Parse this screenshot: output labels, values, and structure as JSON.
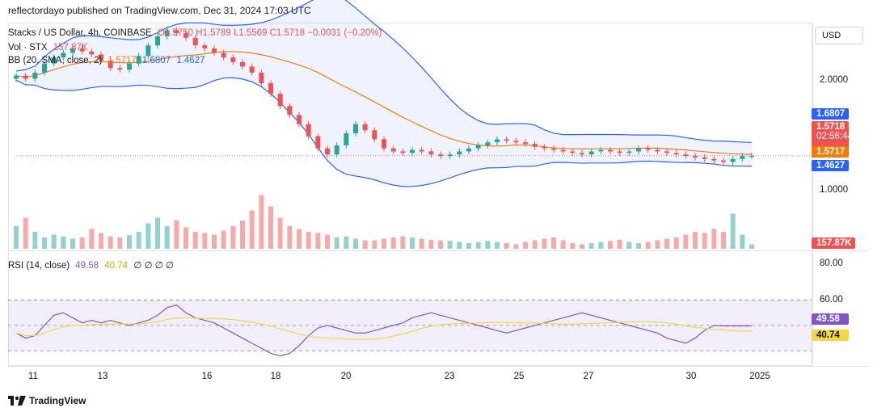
{
  "header": "reflectordayo published on TradingView.com, Dec 31, 2024 17:03 UTC",
  "legend": {
    "symbol": "Stacks / US Dollar, 4h, COINBASE",
    "ohlc": "O1.5750  H1.5789  L1.5569  C1.5718  −0.0031 (−0.20%)",
    "vol_label": "Vol · STX",
    "vol_value": "157.87K",
    "bb_label": "BB (20, SMA, close, 2)",
    "bb_mid": "1.5717",
    "bb_upper": "1.6807",
    "bb_lower": "1.4627",
    "rsi_label": "RSI (14, close)",
    "rsi_value": "49.58",
    "rsi_ma": "40.74",
    "rsi_extra": "∅ ∅ ∅ ∅"
  },
  "price_scale": {
    "currency": "USD",
    "labels": [
      "2.0000",
      "1.0000"
    ],
    "tags": {
      "upper": "1.6807",
      "last_price": "1.5718",
      "countdown": "02:56:44",
      "mid": "1.5717",
      "lower": "1.4627",
      "volume": "157.87K"
    }
  },
  "rsi_scale": {
    "labels": [
      "80.00",
      "60.00"
    ],
    "rsi_tag": "49.58",
    "ma_tag": "40.74"
  },
  "time_axis": [
    "11",
    "13",
    "16",
    "18",
    "20",
    "23",
    "25",
    "27",
    "30",
    "2025"
  ],
  "brand": "TradingView",
  "colors": {
    "up": "#26a69a",
    "down": "#ef5350",
    "bb_band": "#2962ff",
    "bb_mid": "#f57c00",
    "rsi": "#7e57c2",
    "rsi_ma": "#f5d642"
  },
  "chart_data": {
    "type": "candlestick",
    "symbol": "STX/USD",
    "interval": "4h",
    "close_series": [
      2.1,
      2.08,
      2.12,
      2.18,
      2.22,
      2.25,
      2.28,
      2.26,
      2.24,
      2.2,
      2.15,
      2.14,
      2.18,
      2.23,
      2.3,
      2.36,
      2.4,
      2.38,
      2.35,
      2.3,
      2.28,
      2.25,
      2.22,
      2.19,
      2.16,
      2.12,
      2.05,
      1.98,
      1.9,
      1.84,
      1.78,
      1.7,
      1.62,
      1.58,
      1.64,
      1.72,
      1.78,
      1.74,
      1.68,
      1.62,
      1.6,
      1.59,
      1.61,
      1.6,
      1.58,
      1.57,
      1.58,
      1.6,
      1.62,
      1.64,
      1.66,
      1.68,
      1.67,
      1.66,
      1.65,
      1.63,
      1.62,
      1.61,
      1.6,
      1.59,
      1.58,
      1.6,
      1.61,
      1.6,
      1.59,
      1.6,
      1.62,
      1.61,
      1.6,
      1.59,
      1.58,
      1.57,
      1.56,
      1.55,
      1.54,
      1.53,
      1.55,
      1.57,
      1.5718
    ],
    "volume": [
      0.4,
      0.55,
      0.3,
      0.2,
      0.25,
      0.22,
      0.18,
      0.2,
      0.35,
      0.28,
      0.22,
      0.2,
      0.24,
      0.3,
      0.45,
      0.55,
      0.4,
      0.5,
      0.38,
      0.3,
      0.28,
      0.25,
      0.32,
      0.4,
      0.5,
      0.68,
      0.95,
      0.75,
      0.55,
      0.4,
      0.35,
      0.3,
      0.28,
      0.25,
      0.2,
      0.22,
      0.18,
      0.15,
      0.15,
      0.18,
      0.2,
      0.22,
      0.2,
      0.18,
      0.16,
      0.15,
      0.14,
      0.12,
      0.1,
      0.12,
      0.14,
      0.12,
      0.1,
      0.08,
      0.12,
      0.15,
      0.18,
      0.2,
      0.15,
      0.1,
      0.08,
      0.1,
      0.12,
      0.14,
      0.16,
      0.12,
      0.1,
      0.12,
      0.15,
      0.18,
      0.2,
      0.25,
      0.3,
      0.28,
      0.35,
      0.3,
      0.62,
      0.25,
      0.08
    ],
    "rsi_series": [
      44,
      40,
      42,
      50,
      58,
      60,
      56,
      52,
      54,
      52,
      54,
      52,
      50,
      52,
      54,
      58,
      64,
      66,
      60,
      56,
      54,
      52,
      48,
      44,
      40,
      36,
      32,
      28,
      26,
      28,
      34,
      42,
      48,
      50,
      48,
      46,
      44,
      44,
      46,
      48,
      50,
      52,
      56,
      58,
      60,
      58,
      56,
      54,
      52,
      50,
      48,
      46,
      44,
      46,
      48,
      50,
      52,
      54,
      56,
      58,
      60,
      58,
      56,
      54,
      52,
      50,
      48,
      46,
      44,
      40,
      38,
      36,
      40,
      46,
      50,
      49.58,
      49.58,
      49.58,
      49.58
    ],
    "rsi_levels": [
      70,
      30
    ],
    "bb": {
      "upper": 1.6807,
      "middle": 1.5717,
      "lower": 1.4627
    },
    "ylim_price": [
      1.0,
      2.45
    ],
    "x_ticks": [
      "11",
      "13",
      "16",
      "18",
      "20",
      "23",
      "25",
      "27",
      "30",
      "2025"
    ]
  }
}
